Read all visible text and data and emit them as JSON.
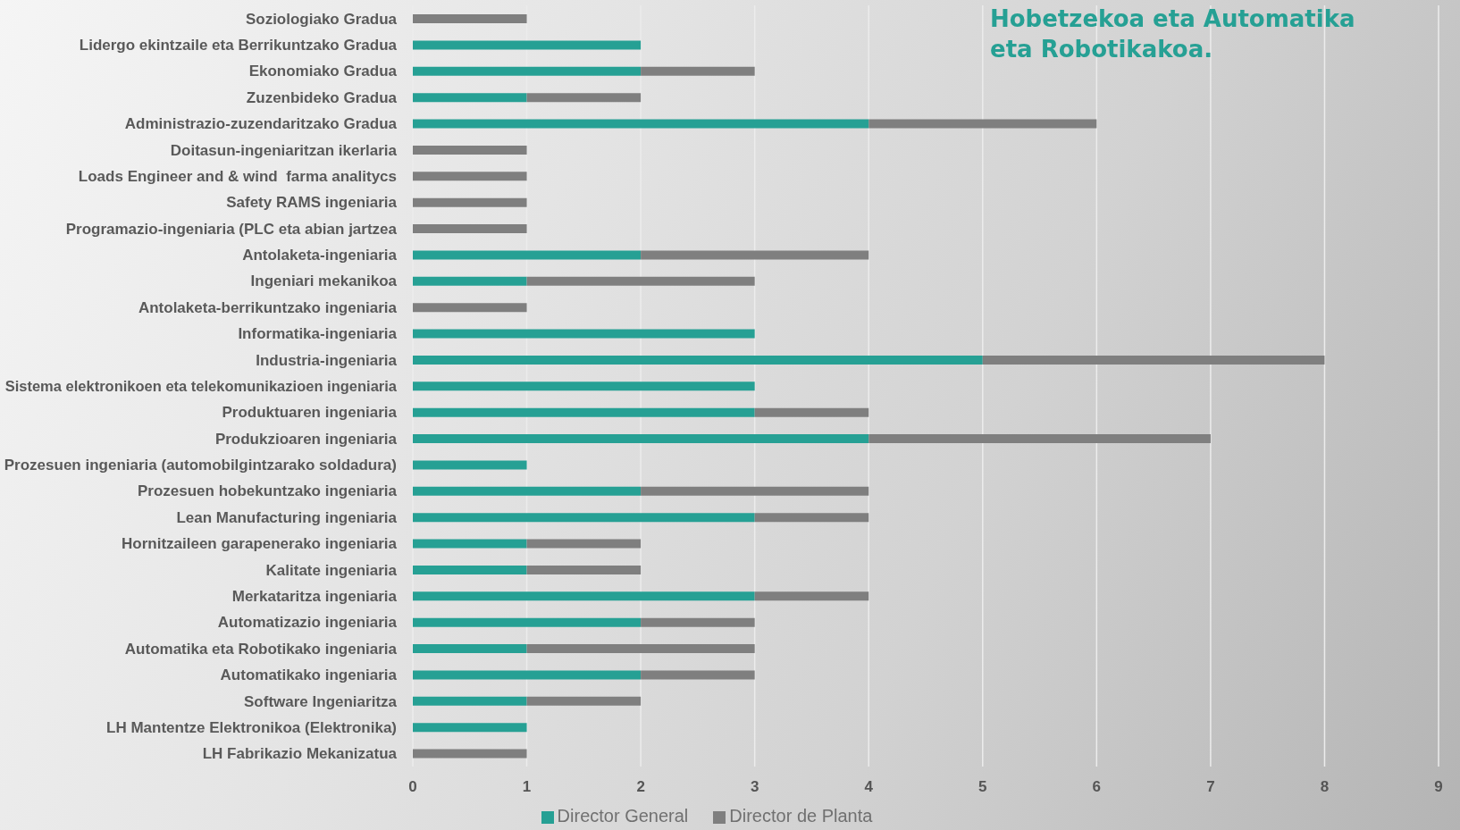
{
  "chart_data": {
    "type": "bar",
    "orientation": "horizontal",
    "stacked": true,
    "title": "Hobetzekoa eta Automatika eta Robotikakoa.",
    "categories": [
      "Soziologiako Gradua",
      "Lidergo ekintzaile eta Berrikuntzako Gradua",
      "Ekonomiako Gradua",
      "Zuzenbideko Gradua",
      "Administrazio-zuzendaritzako Gradua",
      "Doitasun-ingeniaritzan ikerlaria",
      "Loads Engineer and & wind  farma analitycs",
      "Safety RAMS ingeniaria",
      "Programazio-ingeniaria (PLC eta abian jartzea",
      "Antolaketa-ingeniaria",
      "Ingeniari mekanikoa",
      "Antolaketa-berrikuntzako ingeniaria",
      "Informatika-ingeniaria",
      "Industria-ingeniaria",
      "Sistema elektronikoen eta telekomunikazioen ingeniaria",
      "Produktuaren ingeniaria",
      "Produkzioaren ingeniaria",
      "Prozesuen ingeniaria (automobilgintzarako soldadura)",
      "Prozesuen hobekuntzako ingeniaria",
      "Lean Manufacturing ingeniaria",
      "Hornitzaileen garapenerako ingeniaria",
      "Kalitate ingeniaria",
      "Merkataritza ingeniaria",
      "Automatizazio ingeniaria",
      "Automatika eta Robotikako ingeniaria",
      "Automatikako ingeniaria",
      "Software Ingeniaritza",
      "LH Mantentze Elektronikoa (Elektronika)",
      "LH Fabrikazio Mekanizatua"
    ],
    "series": [
      {
        "name": "Director General",
        "color": "#26a094",
        "values": [
          0,
          2,
          2,
          1,
          4,
          0,
          0,
          0,
          0,
          2,
          1,
          0,
          3,
          5,
          3,
          3,
          4,
          1,
          2,
          3,
          1,
          1,
          3,
          2,
          1,
          2,
          1,
          1,
          0
        ]
      },
      {
        "name": "Director de Planta",
        "color": "#7f7f7f",
        "values": [
          1,
          0,
          1,
          1,
          2,
          1,
          1,
          1,
          1,
          2,
          2,
          1,
          0,
          3,
          0,
          1,
          3,
          0,
          2,
          1,
          1,
          1,
          1,
          1,
          2,
          1,
          1,
          0,
          1
        ]
      }
    ],
    "xlim": [
      0,
      9
    ],
    "xticks": [
      0,
      1,
      2,
      3,
      4,
      5,
      6,
      7,
      8,
      9
    ],
    "grid": "x",
    "legend": "bottom"
  }
}
